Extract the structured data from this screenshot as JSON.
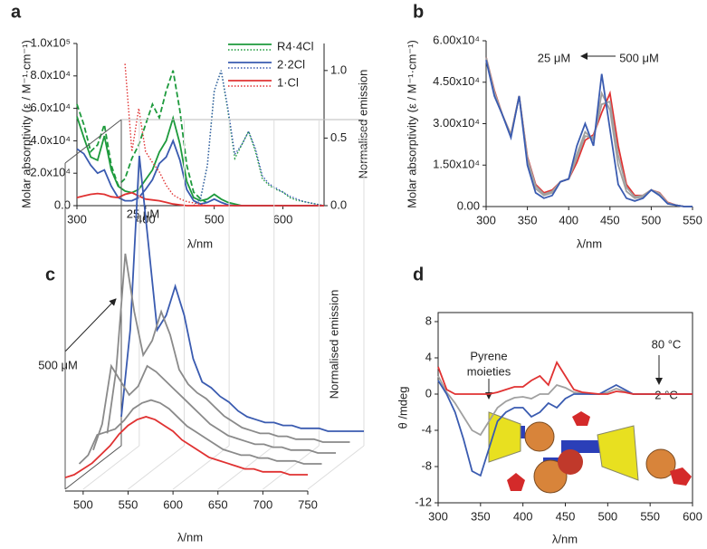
{
  "chart_data": [
    {
      "type": "line",
      "panel": "a",
      "xlabel": "λ/nm",
      "ylabel": "Molar absorptivity (ε / M⁻¹·cm⁻¹)",
      "y2label": "Normalised emission",
      "x": [
        300,
        310,
        320,
        330,
        340,
        350,
        360,
        370,
        380,
        390,
        400,
        410,
        420,
        430,
        440,
        450,
        460,
        470,
        480,
        490,
        500,
        510,
        520,
        530,
        540,
        550,
        560,
        570,
        580,
        590,
        600,
        610,
        620,
        630,
        640,
        650,
        660
      ],
      "xlim": [
        300,
        660
      ],
      "xticks": [
        300,
        400,
        500,
        600
      ],
      "ylim": [
        0,
        100000
      ],
      "yticks": [
        {
          "value": 0,
          "label": "0.0"
        },
        {
          "value": 20000,
          "label": "2.0x10⁴"
        },
        {
          "value": 40000,
          "label": "4.0x10⁴"
        },
        {
          "value": 60000,
          "label": "6.0x10⁴"
        },
        {
          "value": 80000,
          "label": "8.0x10⁴"
        },
        {
          "value": 100000,
          "label": "1.0x10⁵"
        }
      ],
      "y2lim": [
        0,
        1.2
      ],
      "y2ticks": [
        {
          "value": 0,
          "label": "0.0"
        },
        0.5,
        {
          "value": 1,
          "label": "1.0"
        }
      ],
      "series": [
        {
          "name": "R4·4Cl",
          "color": "#1d9a3c",
          "dash": "solid",
          "values": [
            55000,
            42000,
            30000,
            28000,
            43000,
            22000,
            12000,
            9000,
            8000,
            10000,
            16000,
            22000,
            33000,
            40000,
            54000,
            38000,
            15000,
            5000,
            3000,
            4000,
            7000,
            4000,
            2000,
            1000,
            0,
            0,
            0,
            0,
            0,
            0,
            0,
            0,
            0,
            0,
            0,
            0,
            0
          ]
        },
        {
          "color": "#1d9a3c",
          "dash": "dashed",
          "axis": "y2",
          "values": [
            0.75,
            0.6,
            0.4,
            0.45,
            0.6,
            0.3,
            0.15,
            0.2,
            0.35,
            0.45,
            0.6,
            0.75,
            0.65,
            0.85,
            1.0,
            0.7,
            0.3,
            0.1,
            0.05,
            0.02,
            null,
            null,
            null,
            null,
            null,
            null,
            null,
            null,
            null,
            null,
            null,
            null,
            null,
            null,
            null,
            null,
            null
          ]
        },
        {
          "color": "#1d9a3c",
          "dash": "dotted",
          "axis": "y2",
          "values": [
            null,
            null,
            null,
            null,
            null,
            null,
            null,
            null,
            null,
            null,
            null,
            null,
            null,
            null,
            null,
            null,
            null,
            0,
            0.05,
            0.3,
            0.85,
            1.0,
            0.7,
            0.35,
            0.45,
            0.55,
            0.4,
            0.2,
            0.15,
            0.12,
            0.1,
            0.06,
            0.04,
            0.03,
            0.02,
            0.01,
            0
          ]
        },
        {
          "name": "2·2Cl",
          "color": "#3a5bb0",
          "dash": "solid",
          "values": [
            35000,
            32000,
            25000,
            20000,
            22000,
            12000,
            5000,
            3000,
            3000,
            5000,
            10000,
            16000,
            26000,
            30000,
            40000,
            28000,
            10000,
            3000,
            1000,
            2000,
            4000,
            2000,
            500,
            0,
            0,
            0,
            0,
            0,
            0,
            0,
            0,
            0,
            0,
            0,
            0,
            0,
            0
          ]
        },
        {
          "color": "#3a5bb0",
          "dash": "dotted",
          "axis": "y2",
          "values": [
            null,
            null,
            null,
            null,
            null,
            null,
            null,
            null,
            null,
            null,
            null,
            null,
            null,
            null,
            null,
            null,
            null,
            0,
            0.05,
            0.3,
            0.85,
            1.0,
            0.72,
            0.38,
            0.45,
            0.55,
            0.42,
            0.22,
            0.16,
            0.13,
            0.1,
            0.07,
            0.05,
            0.03,
            0.02,
            0.01,
            0
          ]
        },
        {
          "name": "1·Cl",
          "color": "#e03232",
          "dash": "solid",
          "values": [
            5000,
            6000,
            7000,
            7500,
            7000,
            5500,
            5000,
            7000,
            8000,
            6000,
            4000,
            3500,
            3000,
            2000,
            1000,
            500,
            0,
            0,
            0,
            0,
            0,
            0,
            0,
            0,
            0,
            0,
            0,
            0,
            0,
            0,
            0,
            0,
            0,
            0,
            0,
            0,
            0
          ]
        },
        {
          "color": "#e03232",
          "dash": "dotted",
          "axis": "y2",
          "values": [
            null,
            null,
            null,
            null,
            null,
            null,
            null,
            1.05,
            0.4,
            0.72,
            0.4,
            0.32,
            0.25,
            0.15,
            0.08,
            0.05,
            0.03,
            0.02,
            0.01,
            0,
            null,
            null,
            null,
            null,
            null,
            null,
            null,
            null,
            null,
            null,
            null,
            null,
            null,
            null,
            null,
            null,
            null
          ]
        }
      ]
    },
    {
      "type": "line",
      "panel": "b",
      "xlabel": "λ/nm",
      "ylabel": "Molar absorptivity (ε / M⁻¹·cm⁻¹)",
      "x": [
        300,
        310,
        320,
        330,
        340,
        350,
        360,
        370,
        380,
        390,
        400,
        410,
        420,
        430,
        440,
        450,
        460,
        470,
        480,
        490,
        500,
        510,
        520,
        530,
        540,
        550
      ],
      "xlim": [
        300,
        550
      ],
      "xticks": [
        300,
        350,
        400,
        450,
        500,
        550
      ],
      "ylim": [
        0,
        60000
      ],
      "yticks": [
        {
          "value": 0,
          "label": "0.00"
        },
        {
          "value": 15000,
          "label": "1.50x10⁴"
        },
        {
          "value": 30000,
          "label": "3.00x10⁴"
        },
        {
          "value": 45000,
          "label": "4.50x10⁴"
        },
        {
          "value": 60000,
          "label": "6.00x10⁴"
        }
      ],
      "annotations": [
        {
          "text": "25 μM",
          "color": "#3a5bb0"
        },
        {
          "text": "500 μM",
          "color": "#e03232"
        }
      ],
      "series": [
        {
          "color": "#e03232",
          "values": [
            54000,
            42000,
            33000,
            26000,
            40000,
            18000,
            8000,
            5000,
            6000,
            9000,
            10000,
            16000,
            24000,
            26000,
            34000,
            41000,
            22000,
            8000,
            4000,
            4000,
            6000,
            5000,
            1500,
            500,
            0,
            0
          ]
        },
        {
          "color": "#a0a0a0",
          "values": [
            54000,
            41500,
            33000,
            26000,
            40000,
            17500,
            7500,
            4500,
            5500,
            9000,
            10000,
            17500,
            25500,
            25000,
            37000,
            38000,
            18500,
            7000,
            3500,
            4000,
            6000,
            4800,
            1300,
            500,
            0,
            0
          ]
        },
        {
          "color": "#a0a0a0",
          "values": [
            53500,
            41000,
            33000,
            25500,
            40000,
            16500,
            6500,
            4000,
            5000,
            9000,
            10000,
            19000,
            27000,
            24000,
            41000,
            35000,
            15000,
            5500,
            3000,
            3500,
            6000,
            4500,
            1200,
            500,
            0,
            0
          ]
        },
        {
          "color": "#3a5bb0",
          "values": [
            53000,
            40000,
            33000,
            25000,
            40000,
            15000,
            5000,
            3000,
            4000,
            9000,
            10000,
            22000,
            30000,
            22000,
            48000,
            28000,
            8000,
            3000,
            2000,
            3000,
            6000,
            4000,
            1000,
            500,
            0,
            0
          ]
        }
      ]
    },
    {
      "type": "waterfall",
      "panel": "c",
      "xlabel": "λ/nm",
      "ylabel": "Normalised emission",
      "x": [
        480,
        490,
        500,
        510,
        520,
        530,
        540,
        550,
        560,
        570,
        580,
        590,
        600,
        610,
        620,
        630,
        640,
        650,
        660,
        670,
        680,
        690,
        700,
        710,
        720,
        730,
        740,
        750
      ],
      "xlim": [
        480,
        750
      ],
      "xticks": [
        500,
        550,
        600,
        650,
        700,
        750
      ],
      "ylim": [
        0,
        1
      ],
      "annotations": [
        {
          "text": "25 μM",
          "color": "#3a5bb0"
        },
        {
          "text": "500 μM",
          "color": "#e03232"
        }
      ],
      "series": [
        {
          "color": "#3a5bb0",
          "values": [
            0.1,
            0.4,
            1.0,
            0.7,
            0.4,
            0.45,
            0.55,
            0.45,
            0.3,
            0.22,
            0.2,
            0.17,
            0.15,
            0.12,
            0.1,
            0.09,
            0.08,
            0.08,
            0.07,
            0.07,
            0.06,
            0.06,
            0.06,
            0.05,
            0.05,
            0.05,
            0.05,
            0.05
          ]
        },
        {
          "color": "#8a8a8a",
          "values": [
            0.08,
            0.3,
            0.7,
            0.5,
            0.35,
            0.4,
            0.5,
            0.42,
            0.3,
            0.25,
            0.22,
            0.2,
            0.17,
            0.14,
            0.12,
            0.1,
            0.09,
            0.08,
            0.08,
            0.07,
            0.07,
            0.06,
            0.06,
            0.06,
            0.05,
            0.05,
            0.05,
            0.05
          ]
        },
        {
          "color": "#8a8a8a",
          "values": [
            0.06,
            0.15,
            0.35,
            0.3,
            0.25,
            0.28,
            0.35,
            0.33,
            0.3,
            0.27,
            0.24,
            0.21,
            0.18,
            0.15,
            0.13,
            0.11,
            0.1,
            0.09,
            0.08,
            0.08,
            0.07,
            0.07,
            0.06,
            0.06,
            0.06,
            0.05,
            0.05,
            0.05
          ]
        },
        {
          "color": "#8a8a8a",
          "values": [
            0.05,
            0.08,
            0.15,
            0.16,
            0.17,
            0.2,
            0.24,
            0.26,
            0.27,
            0.26,
            0.24,
            0.21,
            0.18,
            0.16,
            0.14,
            0.12,
            0.1,
            0.09,
            0.08,
            0.08,
            0.07,
            0.07,
            0.06,
            0.06,
            0.06,
            0.05,
            0.05,
            0.05
          ]
        },
        {
          "color": "#e03232",
          "values": [
            0.04,
            0.05,
            0.07,
            0.09,
            0.12,
            0.15,
            0.19,
            0.22,
            0.24,
            0.25,
            0.24,
            0.22,
            0.2,
            0.17,
            0.15,
            0.13,
            0.11,
            0.1,
            0.09,
            0.08,
            0.07,
            0.07,
            0.06,
            0.06,
            0.06,
            0.05,
            0.05,
            0.05
          ]
        }
      ]
    },
    {
      "type": "line",
      "panel": "d",
      "xlabel": "λ/nm",
      "ylabel": "θ /mdeg",
      "x": [
        300,
        310,
        320,
        330,
        340,
        350,
        360,
        370,
        380,
        390,
        400,
        410,
        420,
        430,
        440,
        450,
        460,
        470,
        480,
        490,
        500,
        510,
        520,
        530,
        540,
        550,
        560,
        570,
        580,
        590,
        600
      ],
      "xlim": [
        300,
        600
      ],
      "xticks": [
        300,
        350,
        400,
        450,
        500,
        550,
        600
      ],
      "ylim": [
        -12,
        9
      ],
      "yticks": [
        -12,
        -8,
        -4,
        0,
        4,
        8
      ],
      "annotations": [
        {
          "text": "Pyrene",
          "color": "#222222"
        },
        {
          "text": "moieties",
          "color": "#222222"
        },
        {
          "text": "80 °C",
          "color": "#e03232"
        },
        {
          "text": "2 °C",
          "color": "#3a5bb0"
        }
      ],
      "series": [
        {
          "color": "#a0a0a0",
          "values": [
            2,
            0.2,
            -1,
            -2.5,
            -4,
            -4.5,
            -3,
            -1.5,
            -0.8,
            -0.4,
            -0.3,
            -0.5,
            0,
            0,
            1,
            0.7,
            0.2,
            0.1,
            0,
            0,
            0.2,
            0.6,
            0.3,
            0,
            0,
            0,
            0,
            0,
            0,
            0,
            0
          ]
        },
        {
          "color": "#3a5bb0",
          "values": [
            1.5,
            0,
            -2,
            -5,
            -8.5,
            -9,
            -6,
            -3,
            -2,
            -1.5,
            -1.5,
            -2.5,
            -2,
            -1,
            -1.5,
            -0.5,
            0,
            0,
            0,
            0,
            0.5,
            1,
            0.5,
            0,
            0,
            0,
            0,
            0,
            0,
            0,
            0
          ]
        },
        {
          "color": "#e03232",
          "values": [
            3,
            0.5,
            0,
            0,
            0,
            0,
            0,
            0.2,
            0.5,
            0.8,
            0.8,
            1.5,
            2,
            1,
            3.5,
            2,
            0.5,
            0.2,
            0.1,
            0,
            0,
            0.3,
            0.2,
            0,
            0,
            0,
            0,
            0,
            0,
            0,
            0
          ]
        }
      ]
    }
  ]
}
